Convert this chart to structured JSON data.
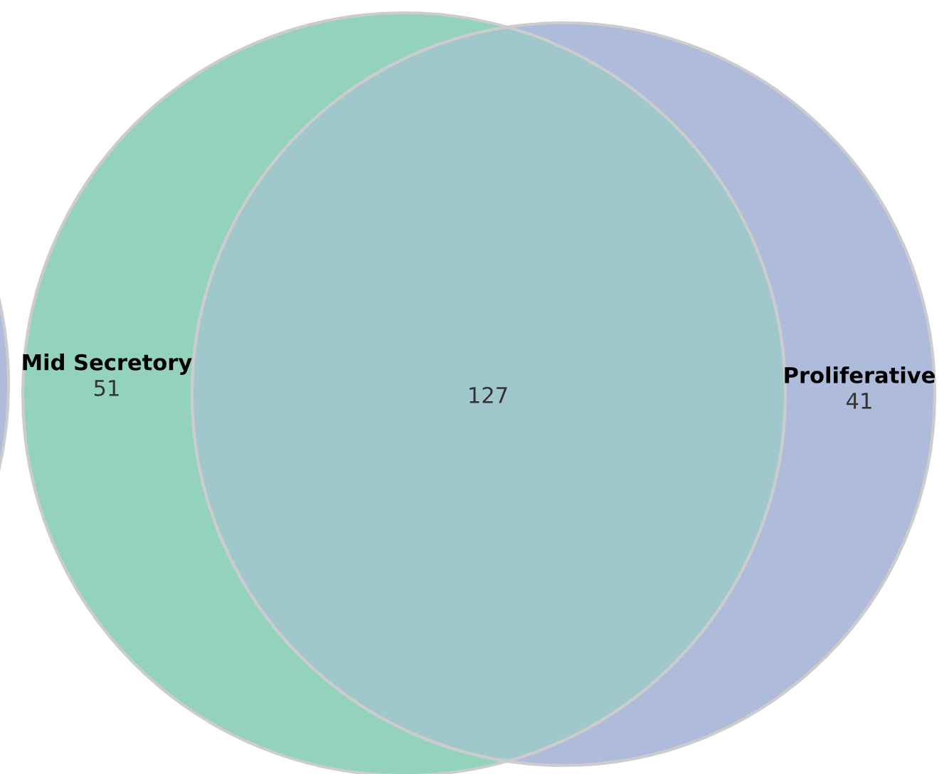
{
  "chart_data": {
    "type": "other",
    "categories": [
      "Mid Secretory",
      "Proliferative"
    ],
    "values": [
      51,
      41
    ],
    "colors": [
      "#93d3bd",
      "#aebbdb"
    ],
    "data_labels": true,
    "annotations": [
      "127"
    ]
  }
}
